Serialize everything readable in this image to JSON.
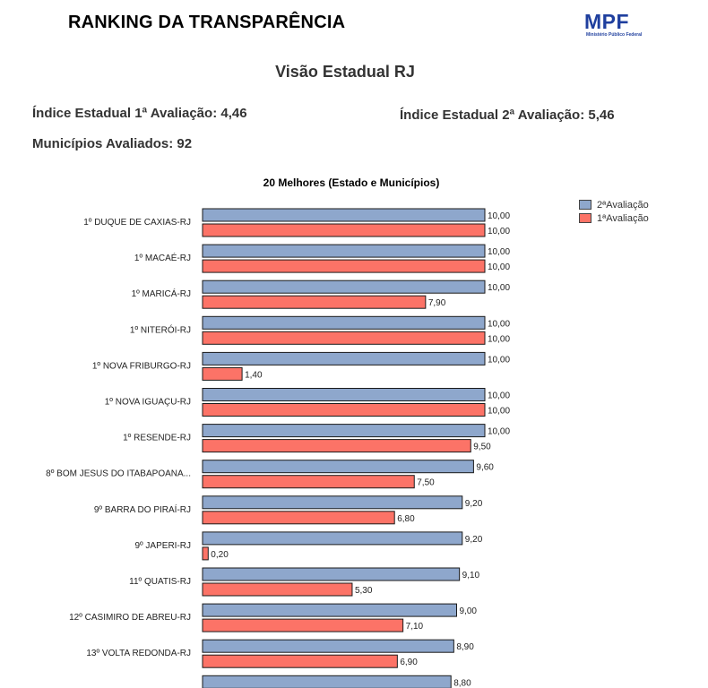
{
  "header": {
    "title": "RANKING DA TRANSPARÊNCIA",
    "logo_text": "MPF",
    "logo_subtext": "Ministério Público Federal"
  },
  "subtitle": "Visão Estadual RJ",
  "stats": {
    "first_eval": "Índice Estadual 1ª Avaliação: 4,46",
    "second_eval": "Índice Estadual 2ª Avaliação: 5,46",
    "municipalities": "Municípios Avaliados: 92"
  },
  "legend": {
    "second_label": "2ªAvaliação",
    "first_label": "1ªAvaliação"
  },
  "colors": {
    "second_eval": "#8ea7cc",
    "first_eval": "#fc7367",
    "bar_border": "#1a1a1a"
  },
  "chart_data": {
    "type": "bar",
    "orientation": "horizontal",
    "title": "20 Melhores (Estado e Municípios)",
    "categories": [
      "1º DUQUE DE CAXIAS-RJ",
      "1º MACAÉ-RJ",
      "1º MARICÁ-RJ",
      "1º NITERÓI-RJ",
      "1º NOVA FRIBURGO-RJ",
      "1º NOVA IGUAÇU-RJ",
      "1º RESENDE-RJ",
      "8º BOM JESUS DO ITABAPOANA...",
      "9º BARRA DO PIRAÍ-RJ",
      "9º JAPERI-RJ",
      "11º QUATIS-RJ",
      "12º CASIMIRO DE ABREU-RJ",
      "13º VOLTA REDONDA-RJ",
      ""
    ],
    "series": [
      {
        "name": "2ªAvaliação",
        "values": [
          10.0,
          10.0,
          10.0,
          10.0,
          10.0,
          10.0,
          10.0,
          9.6,
          9.2,
          9.2,
          9.1,
          9.0,
          8.9,
          8.8
        ],
        "labels": [
          "10,00",
          "10,00",
          "10,00",
          "10,00",
          "10,00",
          "10,00",
          "10,00",
          "9,60",
          "9,20",
          "9,20",
          "9,10",
          "9,00",
          "8,90",
          "8,80"
        ]
      },
      {
        "name": "1ªAvaliação",
        "values": [
          10.0,
          10.0,
          7.9,
          10.0,
          1.4,
          10.0,
          9.5,
          7.5,
          6.8,
          0.2,
          5.3,
          7.1,
          6.9,
          null
        ],
        "labels": [
          "10,00",
          "10,00",
          "7,90",
          "10,00",
          "1,40",
          "10,00",
          "9,50",
          "7,50",
          "6,80",
          "0,20",
          "5,30",
          "7,10",
          "6,90",
          ""
        ]
      }
    ],
    "xlim": [
      0,
      10
    ],
    "legend_position": "top-right",
    "grid": false
  }
}
